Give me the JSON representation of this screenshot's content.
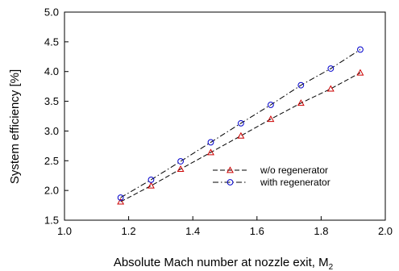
{
  "chart_data": {
    "type": "line",
    "title": "",
    "xlabel": "Absolute Mach number at nozzle exit, M",
    "xlabel_subscript": "2",
    "ylabel": "System efficiency [%]",
    "xlim": [
      1.0,
      2.0
    ],
    "ylim": [
      1.5,
      5.0
    ],
    "xticks": [
      "1.0",
      "1.2",
      "1.4",
      "1.6",
      "1.8",
      "2.0"
    ],
    "yticks": [
      "1.5",
      "2.0",
      "2.5",
      "3.0",
      "3.5",
      "4.0",
      "4.5",
      "5.0"
    ],
    "grid": false,
    "legend_position": "center-right",
    "series": [
      {
        "name": "w/o regenerator",
        "color": "#cc0000",
        "line_style": "dashed",
        "marker": "triangle",
        "x": [
          1.175,
          1.27,
          1.362,
          1.456,
          1.55,
          1.643,
          1.737,
          1.83,
          1.922
        ],
        "y": [
          1.81,
          2.08,
          2.36,
          2.64,
          2.92,
          3.2,
          3.47,
          3.71,
          3.98
        ]
      },
      {
        "name": "with regenerator",
        "color": "#0000cc",
        "line_style": "dash-dot",
        "marker": "circle",
        "x": [
          1.175,
          1.27,
          1.362,
          1.456,
          1.55,
          1.643,
          1.737,
          1.83,
          1.922
        ],
        "y": [
          1.88,
          2.18,
          2.49,
          2.81,
          3.13,
          3.44,
          3.77,
          4.05,
          4.37
        ]
      }
    ]
  }
}
